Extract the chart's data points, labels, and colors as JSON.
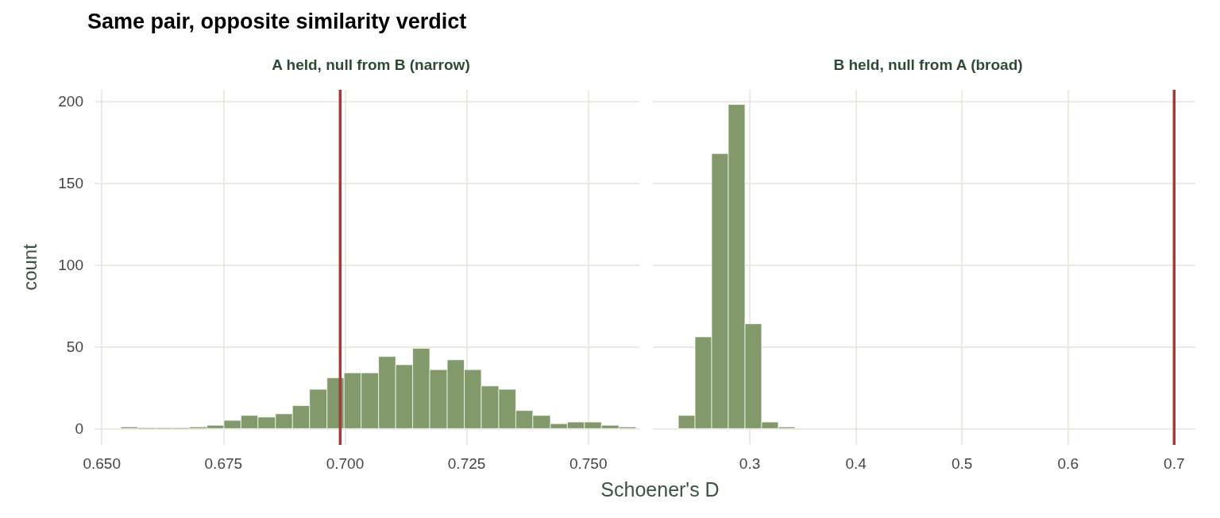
{
  "chart_data": [
    {
      "type": "histogram",
      "title": "Same pair, opposite similarity verdict",
      "subtitle": "A held, null from B (narrow)",
      "xlabel": "Schoener's D",
      "ylabel": "count",
      "color": "#82996b",
      "bins": [
        0.6539,
        0.6574,
        0.661,
        0.6645,
        0.668,
        0.6716,
        0.6751,
        0.6786,
        0.6821,
        0.6857,
        0.6892,
        0.6927,
        0.6963,
        0.6998,
        0.7033,
        0.7069,
        0.7104,
        0.7139,
        0.7174,
        0.721,
        0.7245,
        0.728,
        0.7316,
        0.7351,
        0.7386,
        0.7422,
        0.7457,
        0.7492,
        0.7527,
        0.7563,
        0.7598
      ],
      "values": [
        1,
        0,
        0,
        0,
        1,
        2,
        5,
        8,
        7,
        9,
        14,
        24,
        31,
        34,
        34,
        44,
        39,
        49,
        36,
        42,
        36,
        26,
        24,
        11,
        8,
        3,
        4,
        4,
        2,
        1
      ],
      "xlim": [
        0.6485,
        0.7605
      ],
      "xticks": [
        {
          "value": 0.65,
          "label": "0.650"
        },
        {
          "value": 0.675,
          "label": "0.675"
        },
        {
          "value": 0.7,
          "label": "0.700"
        },
        {
          "value": 0.725,
          "label": "0.725"
        },
        {
          "value": 0.75,
          "label": "0.750"
        }
      ],
      "ylim": [
        -10,
        207
      ],
      "yticks": [
        0,
        50,
        100,
        150,
        200
      ],
      "ref_lines": [
        {
          "axis": "x",
          "value": 0.699,
          "color": "#a23b3b"
        }
      ],
      "grid": true
    },
    {
      "type": "histogram",
      "subtitle": "B held, null from A (broad)",
      "color": "#82996b",
      "bins": [
        0.2326,
        0.2483,
        0.264,
        0.2797,
        0.2954,
        0.3111,
        0.3268,
        0.3425
      ],
      "values": [
        8,
        56,
        168,
        198,
        64,
        4,
        1
      ],
      "xlim": [
        0.2086,
        0.72
      ],
      "xticks": [
        0.3,
        0.4,
        0.5,
        0.6,
        0.7
      ],
      "ylim": [
        -10,
        207
      ],
      "yticks": [
        0,
        50,
        100,
        150,
        200
      ],
      "tick_labels": "x",
      "ref_lines": [
        {
          "axis": "x",
          "value": 0.7,
          "color": "#a23b3b"
        }
      ],
      "grid": true
    }
  ]
}
